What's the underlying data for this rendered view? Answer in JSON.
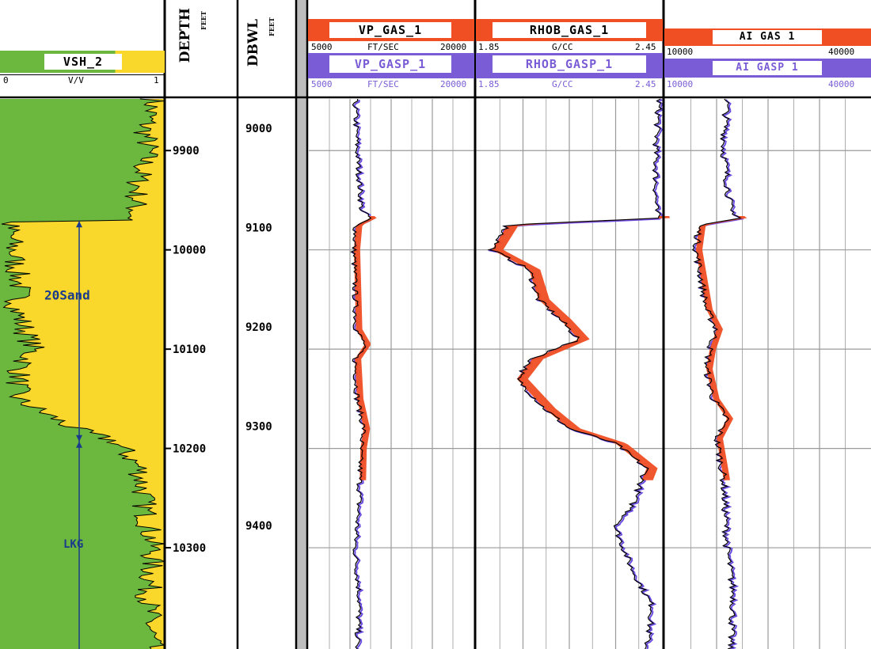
{
  "colors": {
    "sand": "#f9d82b",
    "shale": "#6cb83e",
    "gas_fill": "#f04e23",
    "purple": "#6b4ce0",
    "header_red": "#f04e23",
    "header_purple": "#7a5cd6",
    "marker": "#1a3a8c",
    "grid": "#9a9a9a"
  },
  "tracks": {
    "vsh": {
      "name": "VSH_2",
      "min": "0",
      "unit": "V/V",
      "max": "1"
    },
    "depth": {
      "name": "DEPTH",
      "unit": "FEET",
      "ticks": [
        "9900",
        "10000",
        "10100",
        "10200",
        "10300"
      ]
    },
    "dbwl": {
      "name": "DBWL",
      "unit": "FEET",
      "ticks": [
        "9000",
        "9100",
        "9200",
        "9300",
        "9400"
      ]
    },
    "vp": {
      "gas": "VP_GAS_1",
      "gasp": "VP_GASP_1",
      "min": "5000",
      "unit": "FT/SEC",
      "max": "20000"
    },
    "rhob": {
      "gas": "RHOB_GAS_1",
      "gasp": "RHOB_GASP_1",
      "min": "1.85",
      "unit": "G/CC",
      "max": "2.45"
    },
    "ai": {
      "gas": "AI GAS 1",
      "gasp": "AI GASP 1",
      "min": "10000",
      "max": "40000"
    }
  },
  "markers": [
    "20Sand",
    "LKG"
  ],
  "chart_data": {
    "type": "line",
    "depth_axis": {
      "unit": "FEET",
      "range": [
        9848,
        10402
      ],
      "ticks": [
        9900,
        10000,
        10100,
        10200,
        10300
      ]
    },
    "sand_zones": [
      {
        "name": "20Sand",
        "top": 9971,
        "base": 10193
      }
    ],
    "series": [
      {
        "name": "VSH_2",
        "unit": "V/V",
        "xlim": [
          0,
          1
        ],
        "points": [
          [
            9850,
            0.93
          ],
          [
            9880,
            0.88
          ],
          [
            9900,
            0.9
          ],
          [
            9930,
            0.84
          ],
          [
            9960,
            0.82
          ],
          [
            9970,
            0.8
          ],
          [
            9972,
            0.05
          ],
          [
            10000,
            0.08
          ],
          [
            10040,
            0.12
          ],
          [
            10060,
            0.1
          ],
          [
            10080,
            0.15
          ],
          [
            10100,
            0.2
          ],
          [
            10120,
            0.12
          ],
          [
            10150,
            0.1
          ],
          [
            10180,
            0.45
          ],
          [
            10193,
            0.7
          ],
          [
            10220,
            0.85
          ],
          [
            10260,
            0.88
          ],
          [
            10300,
            0.93
          ],
          [
            10350,
            0.9
          ],
          [
            10400,
            0.92
          ]
        ]
      },
      {
        "name": "VP_GAS_1",
        "unit": "FT/SEC",
        "xlim": [
          5000,
          20000
        ],
        "points": [
          [
            9850,
            9200
          ],
          [
            9900,
            9400
          ],
          [
            9960,
            9800
          ],
          [
            9968,
            10600
          ],
          [
            9975,
            9300
          ],
          [
            10000,
            9100
          ],
          [
            10080,
            9300
          ],
          [
            10095,
            10100
          ],
          [
            10110,
            9200
          ],
          [
            10150,
            9400
          ],
          [
            10180,
            10000
          ],
          [
            10200,
            9700
          ],
          [
            10250,
            9600
          ],
          [
            10300,
            9200
          ],
          [
            10350,
            9600
          ],
          [
            10400,
            9400
          ]
        ]
      },
      {
        "name": "RHOB_GAS_1",
        "unit": "G/CC",
        "xlim": [
          1.85,
          2.45
        ],
        "points": [
          [
            9850,
            2.44
          ],
          [
            9900,
            2.43
          ],
          [
            9960,
            2.43
          ],
          [
            9968,
            2.44
          ],
          [
            9975,
            1.95
          ],
          [
            10000,
            1.9
          ],
          [
            10020,
            2.02
          ],
          [
            10050,
            2.05
          ],
          [
            10070,
            2.12
          ],
          [
            10090,
            2.18
          ],
          [
            10110,
            2.03
          ],
          [
            10130,
            1.98
          ],
          [
            10160,
            2.07
          ],
          [
            10180,
            2.15
          ],
          [
            10195,
            2.3
          ],
          [
            10220,
            2.4
          ],
          [
            10260,
            2.35
          ],
          [
            10280,
            2.3
          ],
          [
            10320,
            2.35
          ],
          [
            10360,
            2.42
          ],
          [
            10400,
            2.4
          ]
        ]
      },
      {
        "name": "AI_GAS_1",
        "unit": "",
        "xlim": [
          10000,
          40000
        ],
        "points": [
          [
            9850,
            19000
          ],
          [
            9900,
            18500
          ],
          [
            9960,
            19500
          ],
          [
            9968,
            21000
          ],
          [
            9975,
            15000
          ],
          [
            10000,
            14500
          ],
          [
            10040,
            15500
          ],
          [
            10060,
            16000
          ],
          [
            10080,
            17500
          ],
          [
            10100,
            16500
          ],
          [
            10120,
            16000
          ],
          [
            10150,
            17000
          ],
          [
            10170,
            19000
          ],
          [
            10190,
            17500
          ],
          [
            10230,
            18500
          ],
          [
            10300,
            19000
          ],
          [
            10350,
            20000
          ],
          [
            10400,
            19500
          ]
        ]
      }
    ]
  }
}
